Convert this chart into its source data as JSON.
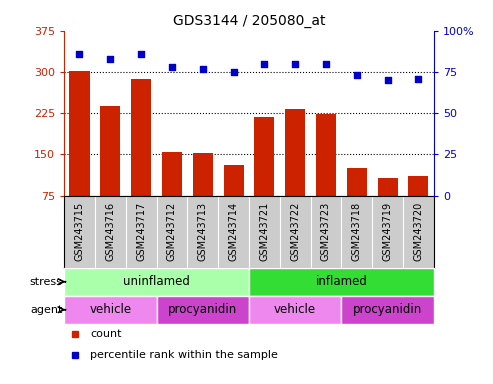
{
  "title": "GDS3144 / 205080_at",
  "samples": [
    "GSM243715",
    "GSM243716",
    "GSM243717",
    "GSM243712",
    "GSM243713",
    "GSM243714",
    "GSM243721",
    "GSM243722",
    "GSM243723",
    "GSM243718",
    "GSM243719",
    "GSM243720"
  ],
  "counts": [
    302,
    238,
    287,
    155,
    152,
    130,
    218,
    232,
    224,
    125,
    108,
    110
  ],
  "percentiles": [
    86,
    83,
    86,
    78,
    77,
    75,
    80,
    80,
    80,
    73,
    70,
    71
  ],
  "ylim_left": [
    75,
    375
  ],
  "ylim_right": [
    0,
    100
  ],
  "yticks_left": [
    75,
    150,
    225,
    300,
    375
  ],
  "yticks_right": [
    0,
    25,
    50,
    75,
    100
  ],
  "hlines": [
    150,
    225,
    300
  ],
  "bar_color": "#cc2200",
  "dot_color": "#0000cc",
  "gray_bg": "#cccccc",
  "stress_groups": [
    {
      "label": "uninflamed",
      "start": 0,
      "end": 6,
      "color": "#aaffaa"
    },
    {
      "label": "inflamed",
      "start": 6,
      "end": 12,
      "color": "#33dd33"
    }
  ],
  "agent_groups": [
    {
      "label": "vehicle",
      "start": 0,
      "end": 3,
      "color": "#ee88ee"
    },
    {
      "label": "procyanidin",
      "start": 3,
      "end": 6,
      "color": "#cc44cc"
    },
    {
      "label": "vehicle",
      "start": 6,
      "end": 9,
      "color": "#ee88ee"
    },
    {
      "label": "procyanidin",
      "start": 9,
      "end": 12,
      "color": "#cc44cc"
    }
  ],
  "stress_label": "stress",
  "agent_label": "agent",
  "legend_items": [
    {
      "label": "count",
      "color": "#cc2200"
    },
    {
      "label": "percentile rank within the sample",
      "color": "#0000cc"
    }
  ]
}
